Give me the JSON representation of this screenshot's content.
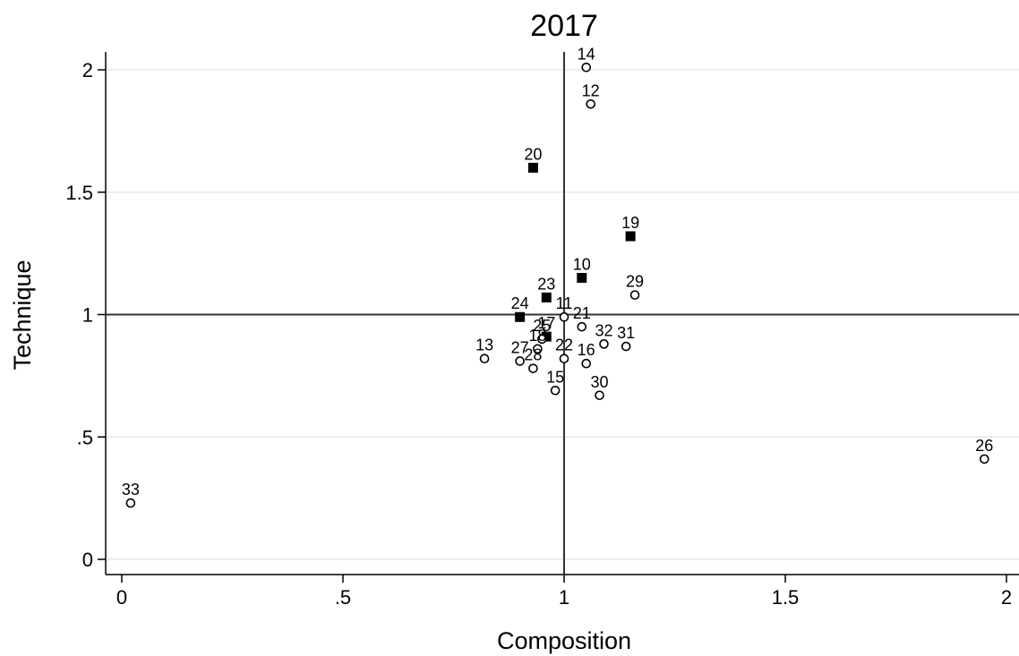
{
  "chart_data": {
    "type": "scatter",
    "title": "2017",
    "xlabel": "Composition",
    "ylabel": "Technique",
    "xlim": [
      0,
      2
    ],
    "ylim": [
      0,
      2
    ],
    "x_ticks": [
      {
        "value": 0,
        "label": "0"
      },
      {
        "value": 0.5,
        "label": ".5"
      },
      {
        "value": 1,
        "label": "1"
      },
      {
        "value": 1.5,
        "label": "1.5"
      },
      {
        "value": 2,
        "label": "2"
      }
    ],
    "y_ticks": [
      {
        "value": 0,
        "label": "0"
      },
      {
        "value": 0.5,
        "label": ".5"
      },
      {
        "value": 1,
        "label": "1"
      },
      {
        "value": 1.5,
        "label": "1.5"
      },
      {
        "value": 2,
        "label": "2"
      }
    ],
    "reference_lines": {
      "x": 1,
      "y": 1
    },
    "horizontal_grid": true,
    "legend": "none",
    "marker_colors": {
      "filled": "#000000",
      "hollow_fill": "#ffffff",
      "stroke": "#000000"
    },
    "points": [
      {
        "label": "14",
        "x": 1.05,
        "y": 2.01,
        "marker": "circle"
      },
      {
        "label": "12",
        "x": 1.06,
        "y": 1.86,
        "marker": "circle"
      },
      {
        "label": "20",
        "x": 0.93,
        "y": 1.6,
        "marker": "square"
      },
      {
        "label": "19",
        "x": 1.15,
        "y": 1.32,
        "marker": "square"
      },
      {
        "label": "10",
        "x": 1.04,
        "y": 1.15,
        "marker": "square"
      },
      {
        "label": "29",
        "x": 1.16,
        "y": 1.08,
        "marker": "circle"
      },
      {
        "label": "23",
        "x": 0.96,
        "y": 1.07,
        "marker": "square"
      },
      {
        "label": "24",
        "x": 0.9,
        "y": 0.99,
        "marker": "square"
      },
      {
        "label": "11",
        "x": 1.0,
        "y": 0.99,
        "marker": "circle"
      },
      {
        "label": "21",
        "x": 1.04,
        "y": 0.95,
        "marker": "circle"
      },
      {
        "label": "17",
        "x": 0.96,
        "y": 0.91,
        "marker": "square"
      },
      {
        "label": "25",
        "x": 0.95,
        "y": 0.9,
        "marker": "circle"
      },
      {
        "label": "32",
        "x": 1.09,
        "y": 0.88,
        "marker": "circle"
      },
      {
        "label": "31",
        "x": 1.14,
        "y": 0.87,
        "marker": "circle"
      },
      {
        "label": "22",
        "x": 1.0,
        "y": 0.82,
        "marker": "circle"
      },
      {
        "label": "16",
        "x": 1.05,
        "y": 0.8,
        "marker": "circle"
      },
      {
        "label": "13",
        "x": 0.82,
        "y": 0.82,
        "marker": "circle"
      },
      {
        "label": "27",
        "x": 0.9,
        "y": 0.81,
        "marker": "circle"
      },
      {
        "label": "18",
        "x": 0.94,
        "y": 0.86,
        "marker": "circle"
      },
      {
        "label": "28",
        "x": 0.93,
        "y": 0.78,
        "marker": "circle"
      },
      {
        "label": "15",
        "x": 0.98,
        "y": 0.69,
        "marker": "circle"
      },
      {
        "label": "30",
        "x": 1.08,
        "y": 0.67,
        "marker": "circle"
      },
      {
        "label": "26",
        "x": 1.95,
        "y": 0.41,
        "marker": "circle"
      },
      {
        "label": "33",
        "x": 0.02,
        "y": 0.23,
        "marker": "circle"
      }
    ]
  }
}
